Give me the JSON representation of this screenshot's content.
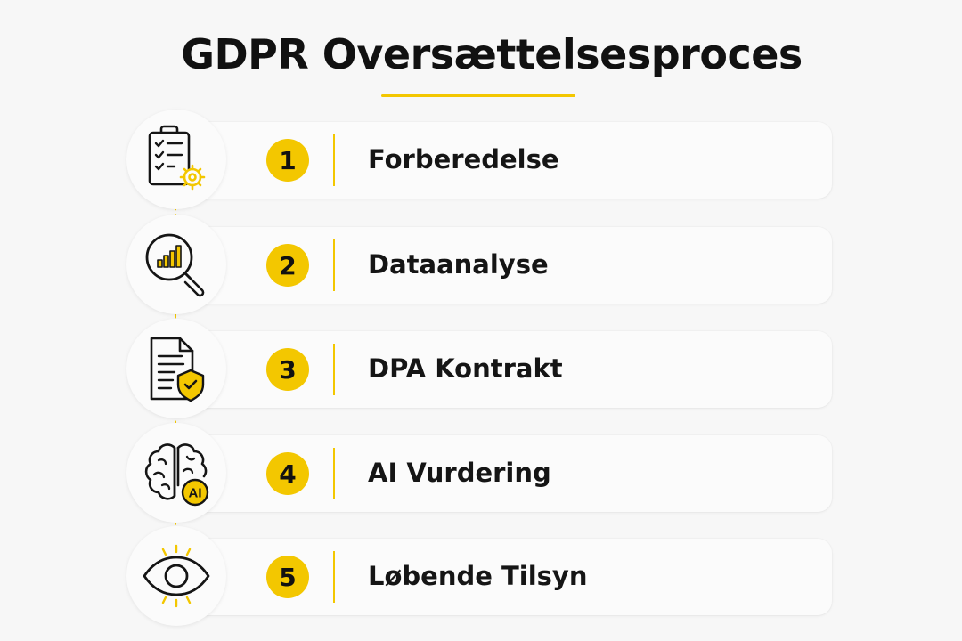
{
  "title": "GDPR Oversættelsesproces",
  "colors": {
    "accent": "#f3c700",
    "text": "#151515",
    "background": "#f7f7f7",
    "card": "#fbfbfb"
  },
  "steps": [
    {
      "number": "1",
      "label": "Forberedelse",
      "icon": "clipboard-checklist-gear-icon"
    },
    {
      "number": "2",
      "label": "Dataanalyse",
      "icon": "magnifier-bar-chart-icon"
    },
    {
      "number": "3",
      "label": "DPA Kontrakt",
      "icon": "document-shield-icon"
    },
    {
      "number": "4",
      "label": "AI Vurdering",
      "icon": "brain-ai-icon",
      "icon_text": "AI"
    },
    {
      "number": "5",
      "label": "Løbende Tilsyn",
      "icon": "eye-icon"
    }
  ]
}
